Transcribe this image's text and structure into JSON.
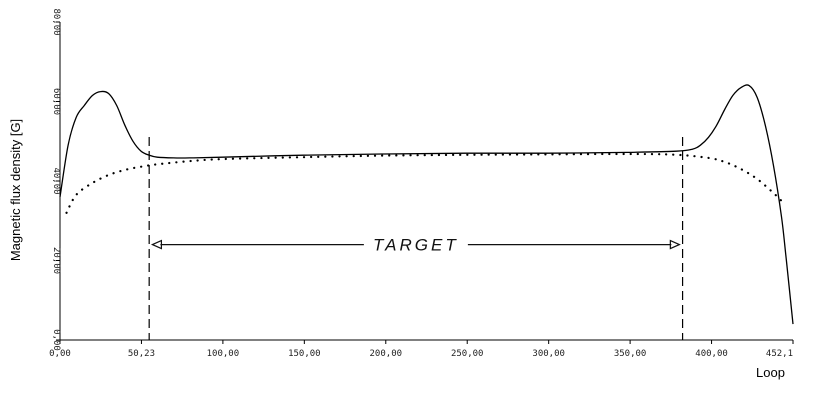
{
  "chart_data": {
    "type": "line",
    "title": "",
    "xlabel": "Loop",
    "ylabel": "Magnetic flux density [G]",
    "xlim": [
      0,
      452.1
    ],
    "ylim": [
      0,
      80
    ],
    "x_tick_labels": [
      "0,00",
      "50,23",
      "100,00",
      "150,00",
      "200,00",
      "250,00",
      "300,00",
      "350,00",
      "400,00",
      "452,1"
    ],
    "y_tick_labels": [
      "0,00",
      "20,00",
      "40,00",
      "60,00",
      "80,00"
    ],
    "grid": false,
    "series": [
      {
        "style": "solid",
        "x": [
          0,
          5,
          10,
          15,
          20,
          25,
          30,
          35,
          40,
          45,
          50,
          55,
          60,
          70,
          80,
          100,
          150,
          200,
          250,
          300,
          350,
          380,
          390,
          395,
          400,
          405,
          410,
          415,
          420,
          425,
          430,
          435,
          440,
          445,
          448,
          452.1
        ],
        "y": [
          36,
          49,
          56,
          59,
          61.5,
          62.5,
          62,
          59,
          54,
          50,
          47.5,
          46.5,
          46,
          45.8,
          45.8,
          46,
          46.5,
          46.8,
          47,
          47,
          47.2,
          47.5,
          48,
          49,
          51,
          54,
          58,
          61.5,
          63.5,
          64,
          61,
          54,
          44,
          31,
          20,
          4
        ]
      },
      {
        "style": "dotted",
        "x": [
          4,
          10,
          20,
          30,
          40,
          50,
          60,
          80,
          100,
          150,
          200,
          250,
          300,
          350,
          380,
          400,
          410,
          420,
          430,
          440,
          445
        ],
        "y": [
          32,
          36.5,
          39.5,
          41.5,
          42.8,
          43.6,
          44.2,
          45,
          45.5,
          46,
          46.4,
          46.6,
          46.7,
          46.8,
          46.6,
          45.8,
          44.8,
          43,
          40.5,
          37,
          35
        ]
      }
    ],
    "markers": [
      {
        "style": "dashed",
        "x": 55
      },
      {
        "style": "dashed",
        "x": 384
      }
    ],
    "annotations": [
      {
        "text": "TARGET",
        "from_x": 57,
        "to_x": 382,
        "y": 24
      }
    ]
  }
}
